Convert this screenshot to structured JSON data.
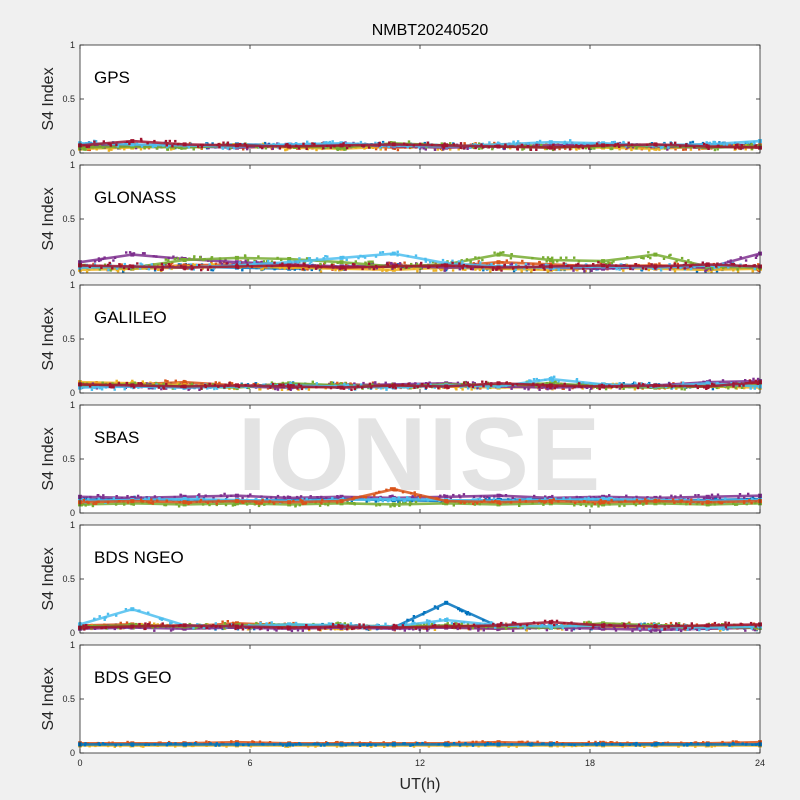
{
  "figure": {
    "title": "NMBT20240520",
    "xlabel": "UT(h)",
    "watermark": "IONISE"
  },
  "chart_data": [
    {
      "type": "scatter",
      "label": "GPS",
      "ylabel": "S4 Index",
      "xlim": [
        0,
        24
      ],
      "ylim": [
        0,
        1
      ],
      "xticks": [
        0,
        6,
        12,
        18,
        24
      ],
      "xtick_labels": [
        "0",
        "6",
        "12",
        "18",
        "24"
      ],
      "yticks": [
        0,
        0.5,
        1
      ],
      "ytick_labels": [
        "0",
        "0.5",
        "1"
      ],
      "grid": false,
      "base": 0.07,
      "spread": 0.025,
      "series": [
        {
          "color": "#0072bd",
          "values": [
            0.08,
            0.07,
            0.06,
            0.08,
            0.07,
            0.06,
            0.08,
            0.07,
            0.06,
            0.07,
            0.06,
            0.07,
            0.08,
            0.07
          ]
        },
        {
          "color": "#d95319",
          "values": [
            0.05,
            0.06,
            0.07,
            0.05,
            0.06,
            0.07,
            0.05,
            0.06,
            0.08,
            0.06,
            0.07,
            0.05,
            0.06,
            0.07
          ]
        },
        {
          "color": "#edb120",
          "values": [
            0.04,
            0.05,
            0.06,
            0.07,
            0.05,
            0.04,
            0.06,
            0.05,
            0.07,
            0.06,
            0.05,
            0.04,
            0.06,
            0.05
          ]
        },
        {
          "color": "#7e2f8e",
          "values": [
            0.06,
            0.07,
            0.06,
            0.05,
            0.07,
            0.08,
            0.06,
            0.05,
            0.06,
            0.07,
            0.08,
            0.06,
            0.05,
            0.06
          ]
        },
        {
          "color": "#77ac30",
          "values": [
            0.05,
            0.06,
            0.05,
            0.07,
            0.06,
            0.05,
            0.09,
            0.07,
            0.06,
            0.05,
            0.06,
            0.07,
            0.05,
            0.06
          ]
        },
        {
          "color": "#4dbeee",
          "values": [
            0.09,
            0.08,
            0.07,
            0.06,
            0.08,
            0.09,
            0.07,
            0.06,
            0.08,
            0.1,
            0.09,
            0.07,
            0.08,
            0.11
          ]
        },
        {
          "color": "#a2142f",
          "values": [
            0.07,
            0.11,
            0.08,
            0.07,
            0.06,
            0.07,
            0.08,
            0.07,
            0.06,
            0.05,
            0.07,
            0.08,
            0.06,
            0.05
          ]
        }
      ]
    },
    {
      "type": "scatter",
      "label": "GLONASS",
      "ylabel": "S4 Index",
      "xlim": [
        0,
        24
      ],
      "ylim": [
        0,
        1
      ],
      "xticks": [
        0,
        6,
        12,
        18,
        24
      ],
      "xtick_labels": [
        "0",
        "6",
        "12",
        "18",
        "24"
      ],
      "yticks": [
        0,
        0.5,
        1
      ],
      "ytick_labels": [
        "0",
        "0.5",
        "1"
      ],
      "grid": false,
      "base": 0.06,
      "spread": 0.03,
      "series": [
        {
          "color": "#0072bd",
          "values": [
            0.05,
            0.04,
            0.06,
            0.05,
            0.04,
            0.05,
            0.06,
            0.05,
            0.04,
            0.05,
            0.06,
            0.05,
            0.04,
            0.05
          ]
        },
        {
          "color": "#d95319",
          "values": [
            0.06,
            0.05,
            0.07,
            0.08,
            0.06,
            0.05,
            0.07,
            0.06,
            0.1,
            0.08,
            0.06,
            0.07,
            0.06,
            0.05
          ]
        },
        {
          "color": "#edb120",
          "values": [
            0.03,
            0.04,
            0.05,
            0.06,
            0.05,
            0.04,
            0.03,
            0.05,
            0.04,
            0.03,
            0.05,
            0.04,
            0.03,
            0.04
          ]
        },
        {
          "color": "#7e2f8e",
          "values": [
            0.1,
            0.17,
            0.13,
            0.1,
            0.08,
            0.06,
            0.07,
            0.05,
            0.06,
            0.05,
            0.04,
            0.06,
            0.05,
            0.18
          ]
        },
        {
          "color": "#77ac30",
          "values": [
            0.06,
            0.05,
            0.12,
            0.14,
            0.13,
            0.1,
            0.06,
            0.08,
            0.17,
            0.12,
            0.11,
            0.17,
            0.06,
            0.05
          ]
        },
        {
          "color": "#4dbeee",
          "values": [
            0.05,
            0.06,
            0.05,
            0.07,
            0.1,
            0.14,
            0.18,
            0.09,
            0.06,
            0.05,
            0.06,
            0.05,
            0.07,
            0.06
          ]
        },
        {
          "color": "#a2142f",
          "values": [
            0.07,
            0.06,
            0.05,
            0.06,
            0.07,
            0.05,
            0.06,
            0.07,
            0.05,
            0.06,
            0.07,
            0.06,
            0.08,
            0.06
          ]
        }
      ]
    },
    {
      "type": "scatter",
      "label": "GALILEO",
      "ylabel": "S4 Index",
      "xlim": [
        0,
        24
      ],
      "ylim": [
        0,
        1
      ],
      "xticks": [
        0,
        6,
        12,
        18,
        24
      ],
      "xtick_labels": [
        "0",
        "6",
        "12",
        "18",
        "24"
      ],
      "yticks": [
        0,
        0.5,
        1
      ],
      "ytick_labels": [
        "0",
        "0.5",
        "1"
      ],
      "grid": false,
      "base": 0.07,
      "spread": 0.025,
      "series": [
        {
          "color": "#0072bd",
          "values": [
            0.07,
            0.06,
            0.07,
            0.06,
            0.08,
            0.07,
            0.06,
            0.07,
            0.06,
            0.07,
            0.08,
            0.07,
            0.06,
            0.07
          ]
        },
        {
          "color": "#d95319",
          "values": [
            0.09,
            0.08,
            0.1,
            0.07,
            0.06,
            0.08,
            0.07,
            0.06,
            0.07,
            0.06,
            0.07,
            0.06,
            0.08,
            0.09
          ]
        },
        {
          "color": "#edb120",
          "values": [
            0.1,
            0.09,
            0.07,
            0.06,
            0.05,
            0.06,
            0.07,
            0.06,
            0.05,
            0.06,
            0.07,
            0.05,
            0.06,
            0.05
          ]
        },
        {
          "color": "#7e2f8e",
          "values": [
            0.06,
            0.07,
            0.05,
            0.06,
            0.05,
            0.07,
            0.08,
            0.09,
            0.06,
            0.05,
            0.06,
            0.07,
            0.1,
            0.11
          ]
        },
        {
          "color": "#77ac30",
          "values": [
            0.07,
            0.08,
            0.06,
            0.05,
            0.09,
            0.07,
            0.06,
            0.08,
            0.07,
            0.09,
            0.06,
            0.05,
            0.06,
            0.07
          ]
        },
        {
          "color": "#4dbeee",
          "values": [
            0.05,
            0.06,
            0.05,
            0.06,
            0.07,
            0.06,
            0.05,
            0.07,
            0.06,
            0.13,
            0.08,
            0.06,
            0.09,
            0.06
          ]
        },
        {
          "color": "#a2142f",
          "values": [
            0.08,
            0.07,
            0.06,
            0.07,
            0.06,
            0.05,
            0.07,
            0.06,
            0.09,
            0.07,
            0.06,
            0.07,
            0.06,
            0.1
          ]
        }
      ]
    },
    {
      "type": "scatter",
      "label": "SBAS",
      "ylabel": "S4 Index",
      "xlim": [
        0,
        24
      ],
      "ylim": [
        0,
        1
      ],
      "xticks": [
        0,
        6,
        12,
        18,
        24
      ],
      "xtick_labels": [
        "0",
        "6",
        "12",
        "18",
        "24"
      ],
      "yticks": [
        0,
        0.5,
        1
      ],
      "ytick_labels": [
        "0",
        "0.5",
        "1"
      ],
      "grid": false,
      "base": 0.12,
      "spread": 0.02,
      "series": [
        {
          "color": "#0072bd",
          "values": [
            0.12,
            0.13,
            0.12,
            0.11,
            0.12,
            0.13,
            0.12,
            0.11,
            0.12,
            0.13,
            0.12,
            0.11,
            0.12,
            0.13
          ]
        },
        {
          "color": "#7e2f8e",
          "values": [
            0.15,
            0.14,
            0.15,
            0.16,
            0.14,
            0.15,
            0.14,
            0.15,
            0.16,
            0.14,
            0.15,
            0.14,
            0.15,
            0.16
          ]
        },
        {
          "color": "#77ac30",
          "values": [
            0.08,
            0.09,
            0.08,
            0.09,
            0.08,
            0.09,
            0.08,
            0.09,
            0.08,
            0.09,
            0.08,
            0.09,
            0.08,
            0.09
          ]
        },
        {
          "color": "#4dbeee",
          "values": [
            0.11,
            0.12,
            0.13,
            0.12,
            0.11,
            0.12,
            0.13,
            0.12,
            0.11,
            0.12,
            0.13,
            0.12,
            0.11,
            0.12
          ]
        },
        {
          "color": "#d95319",
          "values": [
            0.1,
            0.11,
            0.1,
            0.11,
            0.1,
            0.11,
            0.22,
            0.11,
            0.1,
            0.11,
            0.1,
            0.11,
            0.1,
            0.11
          ]
        }
      ]
    },
    {
      "type": "scatter",
      "label": "BDS NGEO",
      "ylabel": "S4 Index",
      "xlim": [
        0,
        24
      ],
      "ylim": [
        0,
        1
      ],
      "xticks": [
        0,
        6,
        12,
        18,
        24
      ],
      "xtick_labels": [
        "0",
        "6",
        "12",
        "18",
        "24"
      ],
      "yticks": [
        0,
        0.5,
        1
      ],
      "ytick_labels": [
        "0",
        "0.5",
        "1"
      ],
      "grid": false,
      "base": 0.06,
      "spread": 0.025,
      "series": [
        {
          "color": "#0072bd",
          "values": [
            0.06,
            0.07,
            0.06,
            0.05,
            0.07,
            0.06,
            0.05,
            0.28,
            0.06,
            0.05,
            0.06,
            0.07,
            0.06,
            0.05
          ]
        },
        {
          "color": "#d95319",
          "values": [
            0.07,
            0.08,
            0.06,
            0.09,
            0.07,
            0.06,
            0.05,
            0.06,
            0.07,
            0.06,
            0.08,
            0.07,
            0.06,
            0.07
          ]
        },
        {
          "color": "#edb120",
          "values": [
            0.05,
            0.06,
            0.07,
            0.06,
            0.05,
            0.04,
            0.06,
            0.05,
            0.04,
            0.05,
            0.06,
            0.05,
            0.04,
            0.05
          ]
        },
        {
          "color": "#7e2f8e",
          "values": [
            0.04,
            0.05,
            0.04,
            0.05,
            0.04,
            0.05,
            0.04,
            0.05,
            0.04,
            0.05,
            0.04,
            0.03,
            0.04,
            0.05
          ]
        },
        {
          "color": "#77ac30",
          "values": [
            0.06,
            0.07,
            0.06,
            0.07,
            0.08,
            0.07,
            0.06,
            0.07,
            0.06,
            0.05,
            0.09,
            0.07,
            0.06,
            0.05
          ]
        },
        {
          "color": "#4dbeee",
          "values": [
            0.08,
            0.22,
            0.07,
            0.06,
            0.08,
            0.07,
            0.06,
            0.12,
            0.07,
            0.06,
            0.07,
            0.06,
            0.05,
            0.06
          ]
        },
        {
          "color": "#a2142f",
          "values": [
            0.05,
            0.06,
            0.07,
            0.06,
            0.05,
            0.06,
            0.05,
            0.06,
            0.07,
            0.1,
            0.07,
            0.06,
            0.07,
            0.08
          ]
        }
      ]
    },
    {
      "type": "scatter",
      "label": "BDS GEO",
      "ylabel": "S4 Index",
      "xlim": [
        0,
        24
      ],
      "ylim": [
        0,
        1
      ],
      "xticks": [
        0,
        6,
        12,
        18,
        24
      ],
      "xtick_labels": [
        "0",
        "6",
        "12",
        "18",
        "24"
      ],
      "yticks": [
        0,
        0.5,
        1
      ],
      "ytick_labels": [
        "0",
        "0.5",
        "1"
      ],
      "grid": false,
      "base": 0.08,
      "spread": 0.012,
      "series": [
        {
          "color": "#d95319",
          "values": [
            0.09,
            0.09,
            0.09,
            0.1,
            0.09,
            0.09,
            0.09,
            0.09,
            0.1,
            0.09,
            0.09,
            0.09,
            0.09,
            0.1
          ]
        },
        {
          "color": "#edb120",
          "values": [
            0.07,
            0.07,
            0.07,
            0.07,
            0.07,
            0.07,
            0.07,
            0.07,
            0.07,
            0.07,
            0.07,
            0.07,
            0.07,
            0.07
          ]
        },
        {
          "color": "#0072bd",
          "values": [
            0.08,
            0.08,
            0.08,
            0.08,
            0.08,
            0.08,
            0.08,
            0.08,
            0.08,
            0.08,
            0.08,
            0.08,
            0.08,
            0.08
          ]
        }
      ]
    }
  ]
}
